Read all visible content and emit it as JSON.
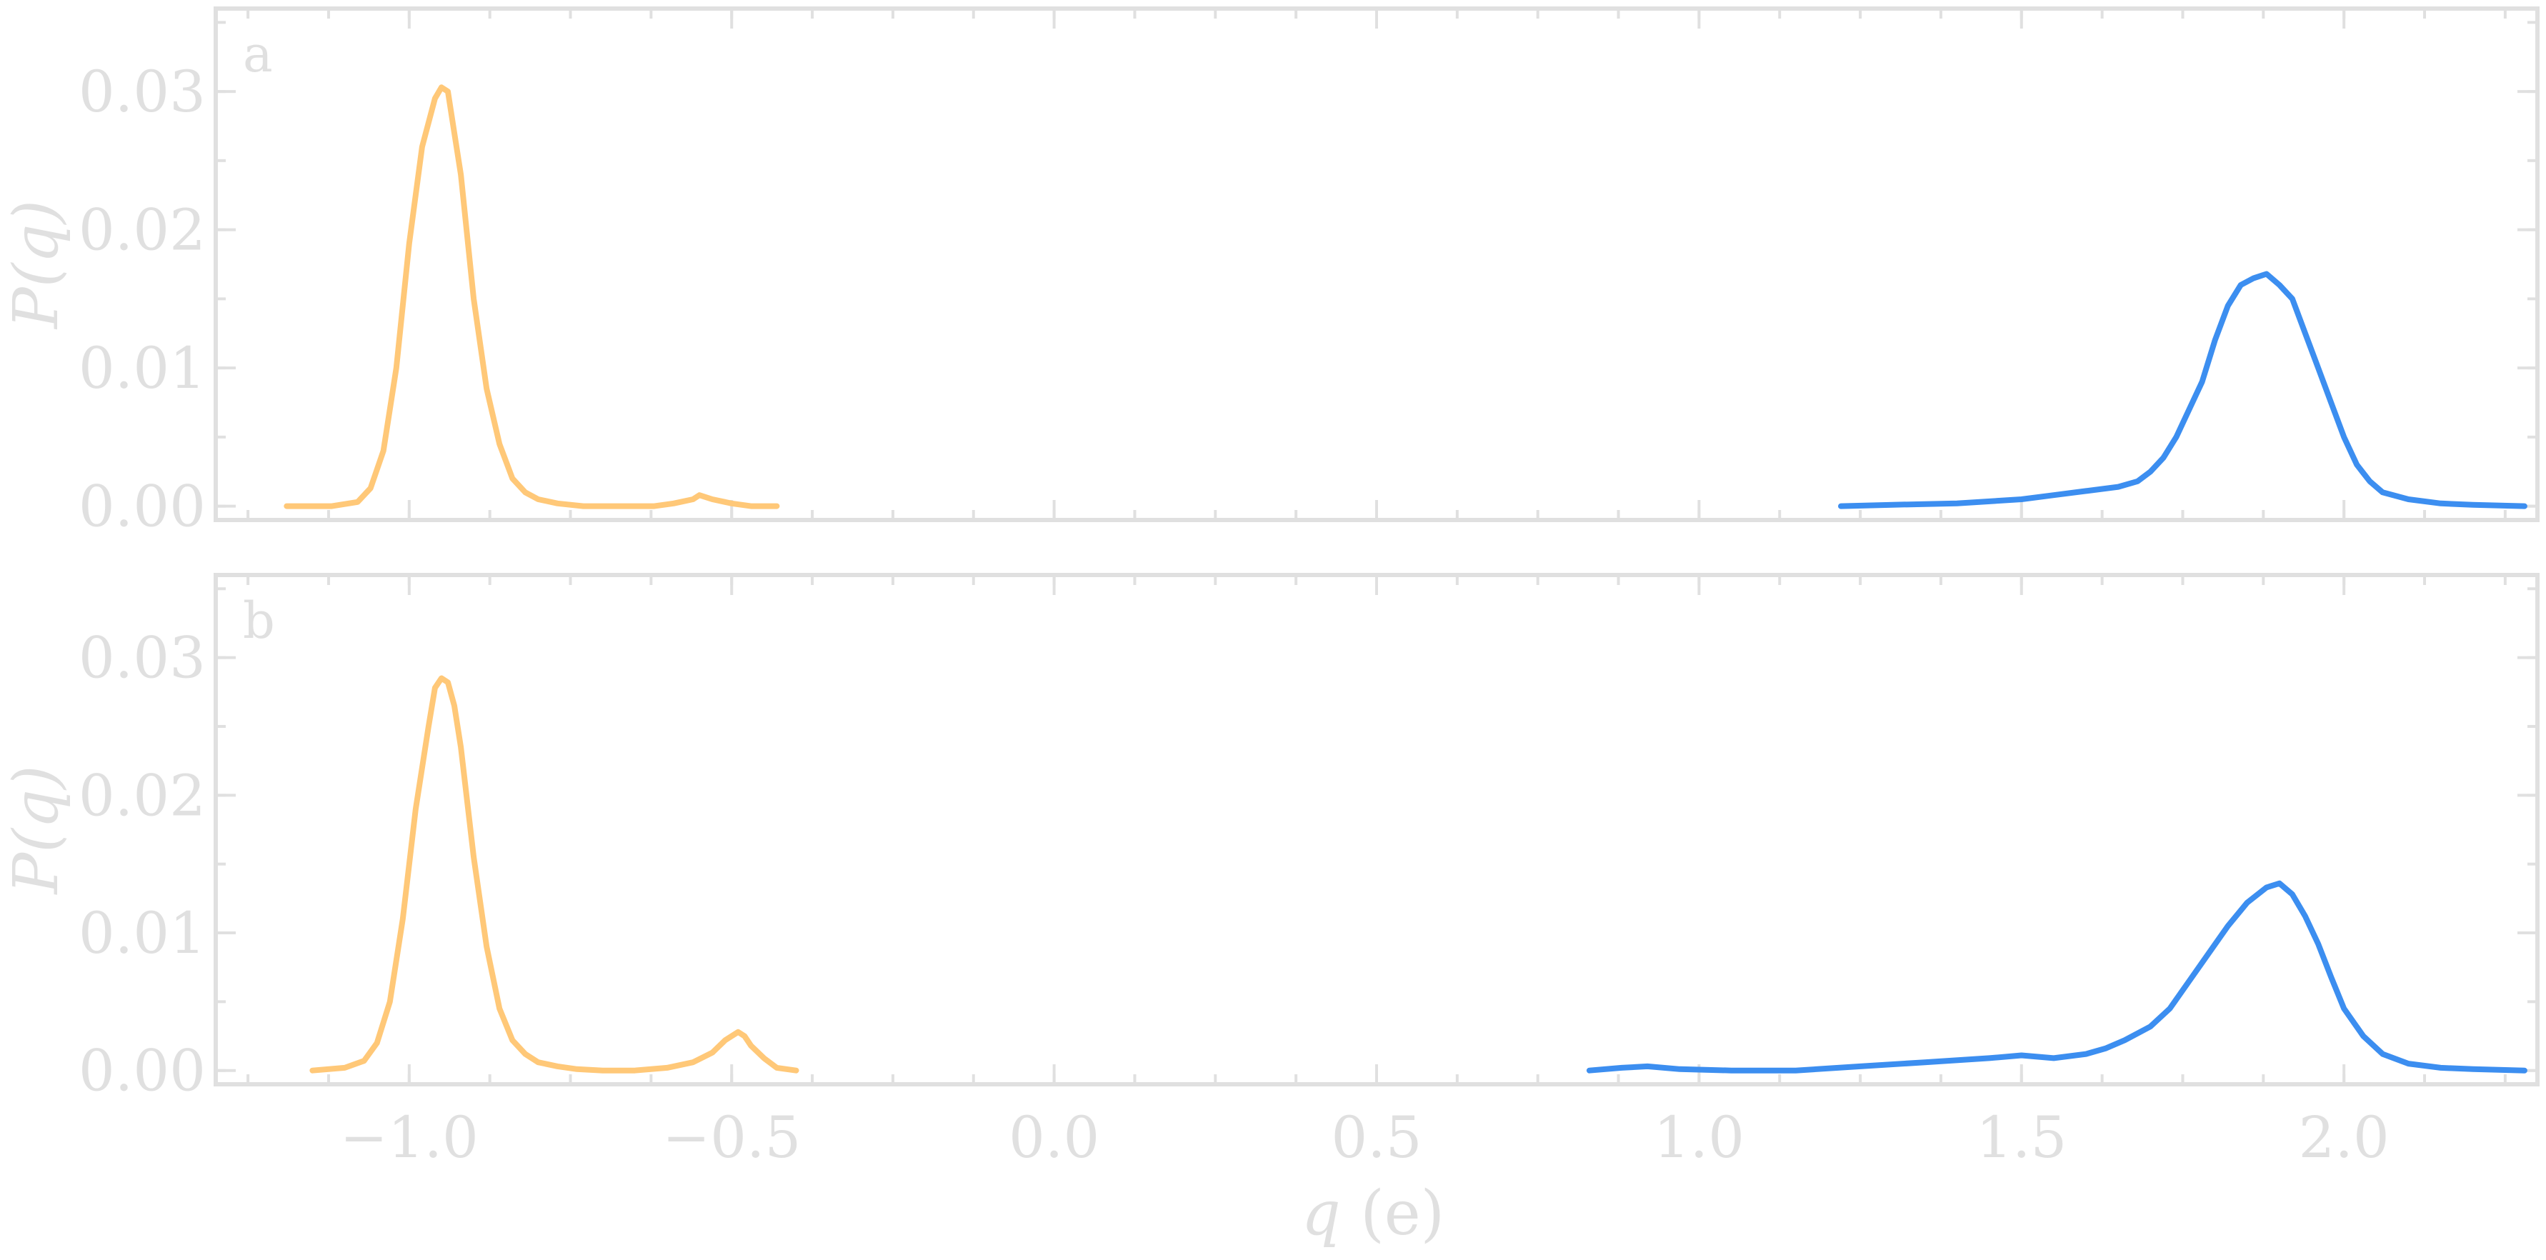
{
  "figure": {
    "x_label": "q (e)",
    "x_label_var": "q",
    "x_label_unit": " (e)",
    "colors": {
      "anion": "#ffc878",
      "cation": "#3c8ef0",
      "axes": "#e0e0e0"
    }
  },
  "chart_data": [
    {
      "type": "line",
      "panel_label": "a",
      "ylabel": "P(q)",
      "xlim": [
        -1.3,
        2.3
      ],
      "ylim": [
        -0.001,
        0.036
      ],
      "x_ticks": [
        -1.0,
        -0.5,
        0.0,
        0.5,
        1.0,
        1.5,
        2.0
      ],
      "x_tick_labels": [
        "−1.0",
        "−0.5",
        "0.0",
        "0.5",
        "1.0",
        "1.5",
        "2.0"
      ],
      "y_ticks": [
        0.0,
        0.01,
        0.02,
        0.03
      ],
      "y_tick_labels": [
        "0.00",
        "0.01",
        "0.02",
        "0.03"
      ],
      "series": [
        {
          "color": "#ffc878",
          "x": [
            -1.19,
            -1.12,
            -1.08,
            -1.06,
            -1.04,
            -1.02,
            -1.0,
            -0.98,
            -0.96,
            -0.95,
            -0.94,
            -0.93,
            -0.92,
            -0.91,
            -0.9,
            -0.88,
            -0.86,
            -0.84,
            -0.82,
            -0.8,
            -0.77,
            -0.73,
            -0.68,
            -0.62,
            -0.59,
            -0.56,
            -0.55,
            -0.53,
            -0.5,
            -0.47,
            -0.43
          ],
          "y": [
            0.0,
            0.0,
            0.0003,
            0.0013,
            0.004,
            0.01,
            0.019,
            0.026,
            0.0295,
            0.0303,
            0.03,
            0.027,
            0.024,
            0.0195,
            0.015,
            0.0085,
            0.0045,
            0.002,
            0.001,
            0.0005,
            0.0002,
            0.0,
            0.0,
            0.0,
            0.0002,
            0.0005,
            0.0008,
            0.0005,
            0.0002,
            0.0,
            0.0
          ]
        },
        {
          "color": "#3c8ef0",
          "x": [
            1.22,
            1.3,
            1.4,
            1.5,
            1.55,
            1.6,
            1.65,
            1.68,
            1.7,
            1.72,
            1.74,
            1.76,
            1.78,
            1.8,
            1.82,
            1.84,
            1.86,
            1.88,
            1.9,
            1.92,
            1.94,
            1.96,
            1.98,
            2.0,
            2.02,
            2.04,
            2.06,
            2.1,
            2.15,
            2.2,
            2.28
          ],
          "y": [
            0.0,
            0.0001,
            0.0002,
            0.0005,
            0.0008,
            0.0011,
            0.0014,
            0.0018,
            0.0025,
            0.0035,
            0.005,
            0.007,
            0.009,
            0.012,
            0.0145,
            0.016,
            0.0165,
            0.0168,
            0.016,
            0.015,
            0.0125,
            0.01,
            0.0075,
            0.005,
            0.003,
            0.0018,
            0.001,
            0.0005,
            0.0002,
            0.0001,
            0.0
          ]
        }
      ]
    },
    {
      "type": "line",
      "panel_label": "b",
      "ylabel": "P(q)",
      "xlim": [
        -1.3,
        2.3
      ],
      "ylim": [
        -0.001,
        0.036
      ],
      "x_ticks": [
        -1.0,
        -0.5,
        0.0,
        0.5,
        1.0,
        1.5,
        2.0
      ],
      "x_tick_labels": [
        "−1.0",
        "−0.5",
        "0.0",
        "0.5",
        "1.0",
        "1.5",
        "2.0"
      ],
      "y_ticks": [
        0.0,
        0.01,
        0.02,
        0.03
      ],
      "y_tick_labels": [
        "0.00",
        "0.01",
        "0.02",
        "0.03"
      ],
      "series": [
        {
          "color": "#ffc878",
          "x": [
            -1.15,
            -1.1,
            -1.07,
            -1.05,
            -1.03,
            -1.01,
            -0.99,
            -0.97,
            -0.96,
            -0.95,
            -0.94,
            -0.93,
            -0.92,
            -0.91,
            -0.9,
            -0.88,
            -0.86,
            -0.84,
            -0.82,
            -0.8,
            -0.77,
            -0.74,
            -0.7,
            -0.65,
            -0.6,
            -0.56,
            -0.53,
            -0.51,
            -0.49,
            -0.48,
            -0.47,
            -0.45,
            -0.43,
            -0.4
          ],
          "y": [
            0.0,
            0.0002,
            0.0007,
            0.002,
            0.005,
            0.011,
            0.019,
            0.025,
            0.0278,
            0.0285,
            0.0282,
            0.0265,
            0.0235,
            0.0195,
            0.0155,
            0.009,
            0.0045,
            0.0022,
            0.0012,
            0.0006,
            0.0003,
            0.0001,
            0.0,
            0.0,
            0.0002,
            0.0006,
            0.0013,
            0.0022,
            0.0028,
            0.0025,
            0.0018,
            0.0009,
            0.0002,
            0.0
          ]
        },
        {
          "color": "#3c8ef0",
          "x": [
            0.83,
            0.88,
            0.92,
            0.97,
            1.05,
            1.15,
            1.25,
            1.35,
            1.45,
            1.5,
            1.55,
            1.6,
            1.63,
            1.66,
            1.7,
            1.73,
            1.76,
            1.79,
            1.82,
            1.85,
            1.88,
            1.9,
            1.92,
            1.94,
            1.96,
            1.98,
            2.0,
            2.03,
            2.06,
            2.1,
            2.15,
            2.2,
            2.28
          ],
          "y": [
            0.0,
            0.0002,
            0.0003,
            0.0001,
            0.0,
            0.0,
            0.0003,
            0.0006,
            0.0009,
            0.0011,
            0.0009,
            0.0012,
            0.0016,
            0.0022,
            0.0032,
            0.0045,
            0.0065,
            0.0085,
            0.0105,
            0.0122,
            0.0133,
            0.0136,
            0.0128,
            0.0112,
            0.0092,
            0.0068,
            0.0045,
            0.0025,
            0.0012,
            0.0005,
            0.0002,
            0.0001,
            0.0
          ]
        }
      ]
    }
  ]
}
